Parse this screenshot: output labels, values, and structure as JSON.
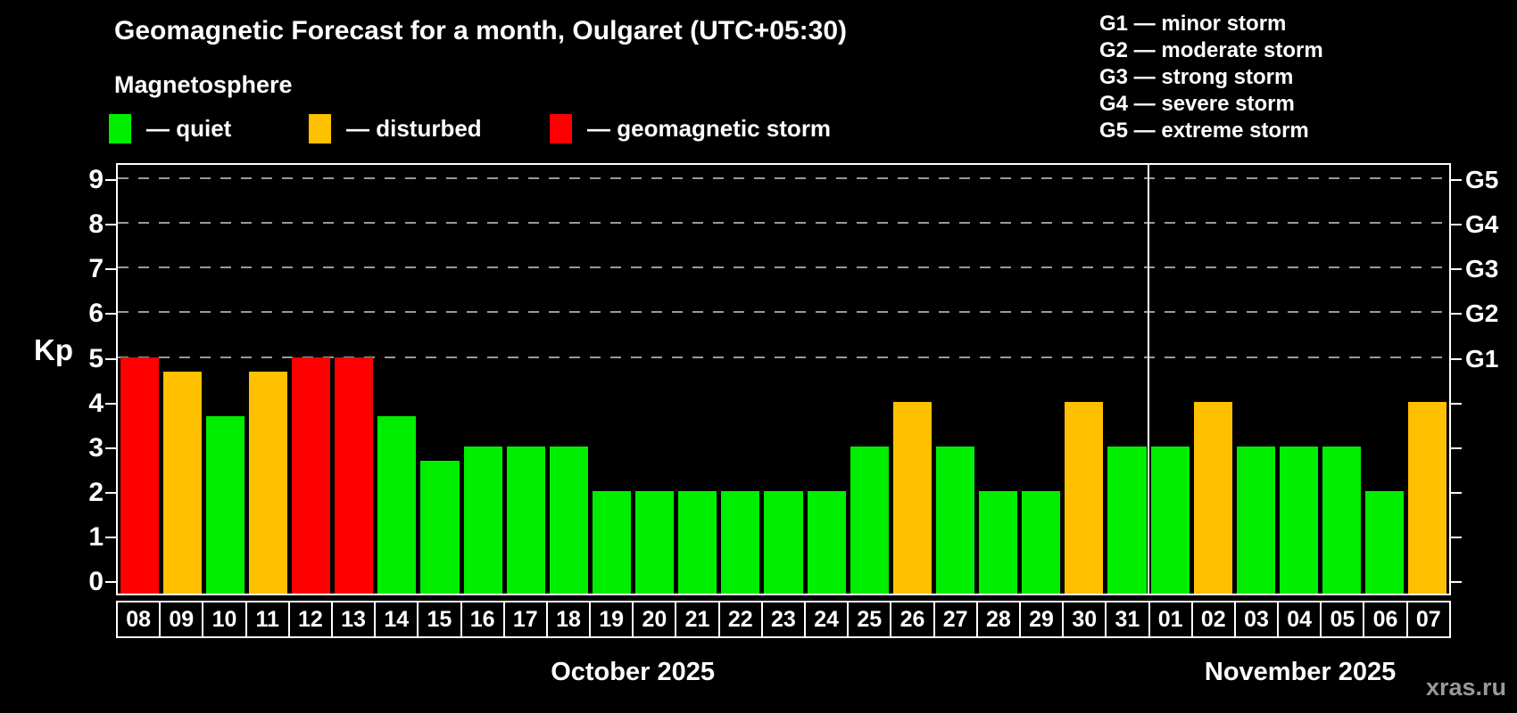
{
  "title": "Geomagnetic Forecast for a month, Oulgaret (UTC+05:30)",
  "subtitle": "Magnetosphere",
  "legend": [
    {
      "key": "quiet",
      "label": "— quiet",
      "color": "#00ee00"
    },
    {
      "key": "disturbed",
      "label": "— disturbed",
      "color": "#ffc000"
    },
    {
      "key": "storm",
      "label": "— geomagnetic storm",
      "color": "#ff0000"
    }
  ],
  "storm_scale_legend": [
    "G1 — minor storm",
    "G2 — moderate storm",
    "G3 — strong storm",
    "G4 — severe storm",
    "G5 — extreme storm"
  ],
  "colors": {
    "quiet": "#00ee00",
    "disturbed": "#ffc000",
    "storm": "#ff0000",
    "background": "#000000",
    "axis": "#ffffff",
    "gridline": "#9a9a9a",
    "watermark": "#999999"
  },
  "watermark": "xras.ru",
  "chart_data": {
    "type": "bar",
    "ylabel": "Kp",
    "ylim": [
      0,
      9
    ],
    "y_ticks": [
      0,
      1,
      2,
      3,
      4,
      5,
      6,
      7,
      8,
      9
    ],
    "gridlines_at": [
      5,
      6,
      7,
      8,
      9
    ],
    "grid": "dashed horizontal at G-storm levels",
    "right_axis_labels": [
      {
        "label": "G5",
        "kp": 9
      },
      {
        "label": "G4",
        "kp": 8
      },
      {
        "label": "G3",
        "kp": 7
      },
      {
        "label": "G2",
        "kp": 6
      },
      {
        "label": "G1",
        "kp": 5
      }
    ],
    "months": [
      {
        "label": "October 2025",
        "days": 24
      },
      {
        "label": "November 2025",
        "days": 7
      }
    ],
    "categories": [
      "08",
      "09",
      "10",
      "11",
      "12",
      "13",
      "14",
      "15",
      "16",
      "17",
      "18",
      "19",
      "20",
      "21",
      "22",
      "23",
      "24",
      "25",
      "26",
      "27",
      "28",
      "29",
      "30",
      "31",
      "01",
      "02",
      "03",
      "04",
      "05",
      "06",
      "07"
    ],
    "values": [
      5,
      4.67,
      3.67,
      4.67,
      5,
      5,
      3.67,
      2.67,
      3,
      3,
      3,
      2,
      2,
      2,
      2,
      2,
      2,
      3,
      4,
      3,
      2,
      2,
      4,
      3,
      3,
      4,
      3,
      3,
      3,
      2,
      4
    ],
    "levels": [
      "storm",
      "disturbed",
      "quiet",
      "disturbed",
      "storm",
      "storm",
      "quiet",
      "quiet",
      "quiet",
      "quiet",
      "quiet",
      "quiet",
      "quiet",
      "quiet",
      "quiet",
      "quiet",
      "quiet",
      "quiet",
      "disturbed",
      "quiet",
      "quiet",
      "quiet",
      "disturbed",
      "quiet",
      "quiet",
      "disturbed",
      "quiet",
      "quiet",
      "quiet",
      "quiet",
      "disturbed"
    ]
  }
}
